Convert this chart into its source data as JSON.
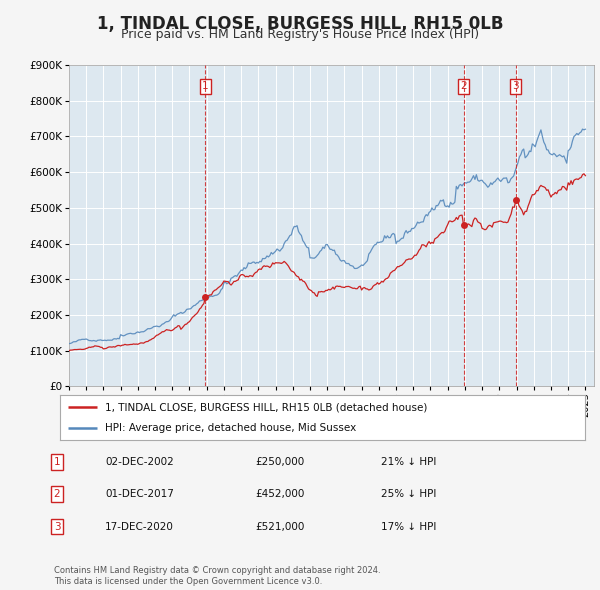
{
  "title": "1, TINDAL CLOSE, BURGESS HILL, RH15 0LB",
  "subtitle": "Price paid vs. HM Land Registry's House Price Index (HPI)",
  "title_fontsize": 12,
  "subtitle_fontsize": 9,
  "legend_line1": "1, TINDAL CLOSE, BURGESS HILL, RH15 0LB (detached house)",
  "legend_line2": "HPI: Average price, detached house, Mid Sussex",
  "transactions": [
    {
      "num": 1,
      "date": "02-DEC-2002",
      "price": 250000,
      "pct": "21%",
      "year_x": 2002.92
    },
    {
      "num": 2,
      "date": "01-DEC-2017",
      "price": 452000,
      "pct": "25%",
      "year_x": 2017.92
    },
    {
      "num": 3,
      "date": "17-DEC-2020",
      "price": 521000,
      "pct": "17%",
      "year_x": 2020.96
    }
  ],
  "footer_line1": "Contains HM Land Registry data © Crown copyright and database right 2024.",
  "footer_line2": "This data is licensed under the Open Government Licence v3.0.",
  "hpi_color": "#5588bb",
  "price_color": "#cc2222",
  "vline_color": "#cc2222",
  "bg_chart": "#dde8f0",
  "bg_fig": "#f5f5f5",
  "ylim": [
    0,
    900000
  ],
  "xlim_start": 1995.0,
  "xlim_end": 2025.5,
  "seed": 42
}
